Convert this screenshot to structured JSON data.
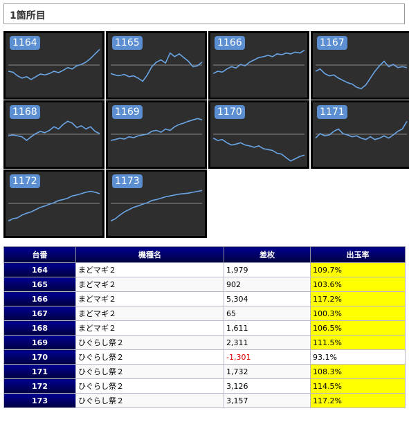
{
  "header": {
    "title": "1箇所目"
  },
  "tiles": [
    {
      "label": "1164",
      "points": [
        [
          0,
          0.5
        ],
        [
          0.05,
          0.52
        ],
        [
          0.1,
          0.6
        ],
        [
          0.15,
          0.65
        ],
        [
          0.2,
          0.62
        ],
        [
          0.25,
          0.68
        ],
        [
          0.3,
          0.62
        ],
        [
          0.35,
          0.56
        ],
        [
          0.4,
          0.58
        ],
        [
          0.45,
          0.55
        ],
        [
          0.5,
          0.5
        ],
        [
          0.55,
          0.53
        ],
        [
          0.6,
          0.48
        ],
        [
          0.65,
          0.42
        ],
        [
          0.7,
          0.45
        ],
        [
          0.75,
          0.38
        ],
        [
          0.8,
          0.35
        ],
        [
          0.85,
          0.3
        ],
        [
          0.9,
          0.22
        ],
        [
          0.95,
          0.12
        ],
        [
          1,
          0.02
        ]
      ]
    },
    {
      "label": "1165",
      "points": [
        [
          0,
          0.55
        ],
        [
          0.08,
          0.6
        ],
        [
          0.15,
          0.57
        ],
        [
          0.2,
          0.62
        ],
        [
          0.25,
          0.6
        ],
        [
          0.3,
          0.65
        ],
        [
          0.35,
          0.72
        ],
        [
          0.4,
          0.58
        ],
        [
          0.45,
          0.4
        ],
        [
          0.5,
          0.3
        ],
        [
          0.55,
          0.25
        ],
        [
          0.6,
          0.32
        ],
        [
          0.65,
          0.1
        ],
        [
          0.7,
          0.18
        ],
        [
          0.75,
          0.12
        ],
        [
          0.8,
          0.2
        ],
        [
          0.85,
          0.28
        ],
        [
          0.9,
          0.4
        ],
        [
          0.95,
          0.38
        ],
        [
          1,
          0.3
        ]
      ]
    },
    {
      "label": "1166",
      "points": [
        [
          0,
          0.55
        ],
        [
          0.05,
          0.5
        ],
        [
          0.1,
          0.52
        ],
        [
          0.15,
          0.45
        ],
        [
          0.2,
          0.4
        ],
        [
          0.25,
          0.43
        ],
        [
          0.3,
          0.35
        ],
        [
          0.35,
          0.38
        ],
        [
          0.4,
          0.3
        ],
        [
          0.45,
          0.25
        ],
        [
          0.5,
          0.2
        ],
        [
          0.55,
          0.18
        ],
        [
          0.6,
          0.15
        ],
        [
          0.65,
          0.18
        ],
        [
          0.7,
          0.12
        ],
        [
          0.75,
          0.14
        ],
        [
          0.8,
          0.1
        ],
        [
          0.85,
          0.12
        ],
        [
          0.9,
          0.08
        ],
        [
          0.95,
          0.1
        ],
        [
          1,
          0.04
        ]
      ]
    },
    {
      "label": "1167",
      "points": [
        [
          0,
          0.5
        ],
        [
          0.05,
          0.45
        ],
        [
          0.1,
          0.55
        ],
        [
          0.15,
          0.6
        ],
        [
          0.2,
          0.58
        ],
        [
          0.25,
          0.65
        ],
        [
          0.3,
          0.7
        ],
        [
          0.35,
          0.75
        ],
        [
          0.4,
          0.78
        ],
        [
          0.45,
          0.85
        ],
        [
          0.5,
          0.88
        ],
        [
          0.55,
          0.8
        ],
        [
          0.6,
          0.65
        ],
        [
          0.65,
          0.5
        ],
        [
          0.7,
          0.38
        ],
        [
          0.75,
          0.28
        ],
        [
          0.8,
          0.4
        ],
        [
          0.85,
          0.35
        ],
        [
          0.9,
          0.42
        ],
        [
          0.95,
          0.4
        ],
        [
          1,
          0.42
        ]
      ]
    },
    {
      "label": "1168",
      "points": [
        [
          0,
          0.4
        ],
        [
          0.05,
          0.38
        ],
        [
          0.1,
          0.4
        ],
        [
          0.15,
          0.42
        ],
        [
          0.2,
          0.5
        ],
        [
          0.25,
          0.42
        ],
        [
          0.3,
          0.35
        ],
        [
          0.35,
          0.3
        ],
        [
          0.4,
          0.33
        ],
        [
          0.45,
          0.28
        ],
        [
          0.5,
          0.2
        ],
        [
          0.55,
          0.25
        ],
        [
          0.6,
          0.15
        ],
        [
          0.65,
          0.08
        ],
        [
          0.7,
          0.12
        ],
        [
          0.75,
          0.22
        ],
        [
          0.8,
          0.18
        ],
        [
          0.85,
          0.25
        ],
        [
          0.9,
          0.2
        ],
        [
          0.95,
          0.3
        ],
        [
          1,
          0.35
        ]
      ]
    },
    {
      "label": "1169",
      "points": [
        [
          0,
          0.5
        ],
        [
          0.05,
          0.48
        ],
        [
          0.1,
          0.45
        ],
        [
          0.15,
          0.47
        ],
        [
          0.2,
          0.42
        ],
        [
          0.25,
          0.44
        ],
        [
          0.3,
          0.4
        ],
        [
          0.35,
          0.38
        ],
        [
          0.4,
          0.36
        ],
        [
          0.45,
          0.3
        ],
        [
          0.5,
          0.28
        ],
        [
          0.55,
          0.32
        ],
        [
          0.6,
          0.25
        ],
        [
          0.65,
          0.28
        ],
        [
          0.7,
          0.2
        ],
        [
          0.75,
          0.15
        ],
        [
          0.8,
          0.12
        ],
        [
          0.85,
          0.08
        ],
        [
          0.9,
          0.05
        ],
        [
          0.95,
          0.02
        ],
        [
          1,
          0.05
        ]
      ]
    },
    {
      "label": "1170",
      "points": [
        [
          0,
          0.45
        ],
        [
          0.05,
          0.5
        ],
        [
          0.1,
          0.48
        ],
        [
          0.15,
          0.55
        ],
        [
          0.2,
          0.6
        ],
        [
          0.25,
          0.58
        ],
        [
          0.3,
          0.55
        ],
        [
          0.35,
          0.6
        ],
        [
          0.4,
          0.62
        ],
        [
          0.45,
          0.65
        ],
        [
          0.5,
          0.62
        ],
        [
          0.55,
          0.68
        ],
        [
          0.6,
          0.7
        ],
        [
          0.65,
          0.72
        ],
        [
          0.7,
          0.78
        ],
        [
          0.75,
          0.8
        ],
        [
          0.8,
          0.88
        ],
        [
          0.85,
          0.95
        ],
        [
          0.9,
          0.9
        ],
        [
          0.95,
          0.85
        ],
        [
          1,
          0.82
        ]
      ]
    },
    {
      "label": "1171",
      "points": [
        [
          0,
          0.45
        ],
        [
          0.05,
          0.35
        ],
        [
          0.1,
          0.4
        ],
        [
          0.15,
          0.38
        ],
        [
          0.2,
          0.3
        ],
        [
          0.25,
          0.25
        ],
        [
          0.3,
          0.35
        ],
        [
          0.35,
          0.38
        ],
        [
          0.4,
          0.42
        ],
        [
          0.45,
          0.4
        ],
        [
          0.5,
          0.45
        ],
        [
          0.55,
          0.48
        ],
        [
          0.6,
          0.42
        ],
        [
          0.65,
          0.48
        ],
        [
          0.7,
          0.45
        ],
        [
          0.75,
          0.4
        ],
        [
          0.8,
          0.45
        ],
        [
          0.85,
          0.38
        ],
        [
          0.9,
          0.3
        ],
        [
          0.95,
          0.25
        ],
        [
          1,
          0.08
        ]
      ]
    },
    {
      "label": "1172",
      "points": [
        [
          0,
          0.75
        ],
        [
          0.05,
          0.7
        ],
        [
          0.1,
          0.68
        ],
        [
          0.15,
          0.62
        ],
        [
          0.2,
          0.58
        ],
        [
          0.25,
          0.55
        ],
        [
          0.3,
          0.5
        ],
        [
          0.35,
          0.45
        ],
        [
          0.4,
          0.42
        ],
        [
          0.45,
          0.38
        ],
        [
          0.5,
          0.35
        ],
        [
          0.55,
          0.3
        ],
        [
          0.6,
          0.28
        ],
        [
          0.65,
          0.25
        ],
        [
          0.7,
          0.2
        ],
        [
          0.75,
          0.18
        ],
        [
          0.8,
          0.15
        ],
        [
          0.85,
          0.12
        ],
        [
          0.9,
          0.1
        ],
        [
          0.95,
          0.12
        ],
        [
          1,
          0.15
        ]
      ]
    },
    {
      "label": "1173",
      "points": [
        [
          0,
          0.75
        ],
        [
          0.05,
          0.7
        ],
        [
          0.1,
          0.62
        ],
        [
          0.15,
          0.55
        ],
        [
          0.2,
          0.5
        ],
        [
          0.25,
          0.45
        ],
        [
          0.3,
          0.42
        ],
        [
          0.35,
          0.38
        ],
        [
          0.4,
          0.35
        ],
        [
          0.45,
          0.3
        ],
        [
          0.5,
          0.28
        ],
        [
          0.55,
          0.25
        ],
        [
          0.6,
          0.22
        ],
        [
          0.65,
          0.2
        ],
        [
          0.7,
          0.18
        ],
        [
          0.75,
          0.16
        ],
        [
          0.8,
          0.15
        ],
        [
          0.85,
          0.14
        ],
        [
          0.9,
          0.12
        ],
        [
          0.95,
          0.1
        ],
        [
          1,
          0.08
        ]
      ]
    }
  ],
  "table": {
    "headers": [
      "台番",
      "機種名",
      "差枚",
      "出玉率"
    ],
    "rows": [
      {
        "no": "164",
        "model": "まどマギ２",
        "diff": "1,979",
        "rate": "109.7%",
        "neg": false,
        "hi": true
      },
      {
        "no": "165",
        "model": "まどマギ２",
        "diff": "902",
        "rate": "103.6%",
        "neg": false,
        "hi": true
      },
      {
        "no": "166",
        "model": "まどマギ２",
        "diff": "5,304",
        "rate": "117.2%",
        "neg": false,
        "hi": true
      },
      {
        "no": "167",
        "model": "まどマギ２",
        "diff": "65",
        "rate": "100.3%",
        "neg": false,
        "hi": true
      },
      {
        "no": "168",
        "model": "まどマギ２",
        "diff": "1,611",
        "rate": "106.5%",
        "neg": false,
        "hi": true
      },
      {
        "no": "169",
        "model": "ひぐらし祭２",
        "diff": "2,311",
        "rate": "111.5%",
        "neg": false,
        "hi": true
      },
      {
        "no": "170",
        "model": "ひぐらし祭２",
        "diff": "-1,301",
        "rate": "93.1%",
        "neg": true,
        "hi": false
      },
      {
        "no": "171",
        "model": "ひぐらし祭２",
        "diff": "1,732",
        "rate": "108.3%",
        "neg": false,
        "hi": true
      },
      {
        "no": "172",
        "model": "ひぐらし祭２",
        "diff": "3,126",
        "rate": "114.5%",
        "neg": false,
        "hi": true
      },
      {
        "no": "173",
        "model": "ひぐらし祭２",
        "diff": "3,157",
        "rate": "117.2%",
        "neg": false,
        "hi": true
      }
    ]
  }
}
